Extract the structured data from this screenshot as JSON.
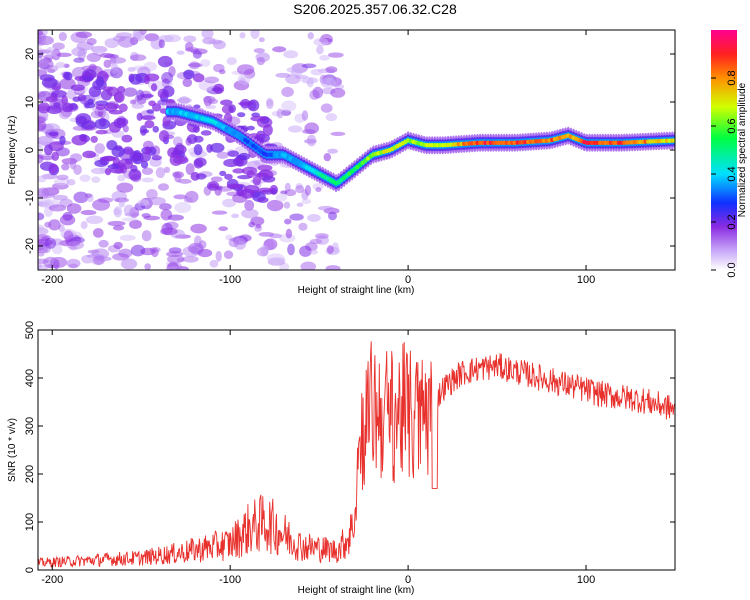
{
  "title": "S206.2025.357.06.32.C28",
  "colors": {
    "snr_line": "#e8302c",
    "ridge_weak": "#8a3cf0",
    "ridge_strong": "#ff2020"
  },
  "chart_data": [
    {
      "type": "heatmap",
      "name": "spectrogram",
      "xlabel": "Height of straight line (km)",
      "ylabel": "Frequency (Hz)",
      "xlim": [
        -208,
        150
      ],
      "ylim": [
        -25,
        25
      ],
      "xticks": [
        -200,
        -100,
        0,
        100
      ],
      "yticks": [
        -20,
        -10,
        0,
        10,
        20
      ],
      "ridge": {
        "description_points_x": [
          -130,
          -110,
          -95,
          -80,
          -70,
          -60,
          -50,
          -40,
          -30,
          -20,
          -10,
          0,
          10,
          20,
          40,
          60,
          80,
          90,
          100,
          120,
          150
        ],
        "frequency_hz": [
          8,
          6,
          3,
          -1,
          -1,
          -3,
          -5,
          -7,
          -4,
          -1,
          0,
          2,
          1,
          1,
          1.5,
          1.5,
          2,
          3,
          1.5,
          1.5,
          2
        ],
        "amplitude": [
          0.4,
          0.45,
          0.35,
          0.3,
          0.4,
          0.4,
          0.5,
          0.55,
          0.6,
          0.7,
          0.75,
          0.7,
          0.7,
          0.75,
          0.95,
          0.95,
          0.9,
          0.8,
          0.95,
          0.95,
          0.75
        ]
      },
      "colorbar": {
        "label": "Normalized spectral amplitude",
        "ticks": [
          "0.0",
          "0.2",
          "0.4",
          "0.6",
          "0.8"
        ],
        "range": [
          0,
          1
        ]
      }
    },
    {
      "type": "line",
      "name": "snr",
      "xlabel": "Height of straight line (km)",
      "ylabel": "SNR (10 * v/v)",
      "xlim": [
        -208,
        150
      ],
      "ylim": [
        0,
        500
      ],
      "xticks": [
        -200,
        -100,
        0,
        100
      ],
      "yticks": [
        0,
        100,
        200,
        300,
        400,
        500
      ],
      "series": [
        {
          "name": "SNR",
          "x": [
            -208,
            -190,
            -170,
            -150,
            -130,
            -115,
            -100,
            -90,
            -80,
            -70,
            -60,
            -50,
            -40,
            -35,
            -30,
            -28,
            -25,
            -20,
            -15,
            -10,
            -5,
            0,
            5,
            10,
            15,
            20,
            30,
            40,
            50,
            60,
            70,
            80,
            90,
            100,
            110,
            120,
            130,
            140,
            150
          ],
          "y": [
            15,
            18,
            22,
            25,
            35,
            45,
            55,
            85,
            100,
            75,
            50,
            45,
            40,
            60,
            100,
            250,
            300,
            340,
            330,
            320,
            330,
            320,
            310,
            330,
            350,
            380,
            410,
            420,
            425,
            415,
            405,
            395,
            385,
            375,
            365,
            360,
            355,
            345,
            335
          ]
        }
      ]
    }
  ]
}
